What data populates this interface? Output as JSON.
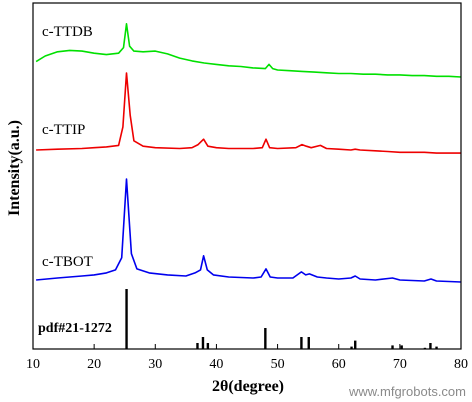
{
  "chart_data": {
    "type": "line",
    "xlabel": "2θ(degree)",
    "ylabel": "Intensity(a.u.)",
    "xlim": [
      10,
      80
    ],
    "xticks": [
      10,
      20,
      30,
      40,
      50,
      60,
      70,
      80
    ],
    "y_ticks_shown": false,
    "grid": false,
    "series": [
      {
        "name": "c-TTDB",
        "color": "#00e000",
        "x": [
          10.5,
          12,
          14,
          16,
          18,
          20,
          22,
          24,
          24.8,
          25.3,
          25.8,
          26.5,
          28,
          30,
          32,
          34,
          36,
          38,
          40,
          42,
          44,
          46,
          48,
          48.6,
          49.2,
          50,
          52,
          54,
          56,
          58,
          60,
          62,
          64,
          66,
          68,
          70,
          72,
          74,
          76,
          78,
          80
        ],
        "values": [
          0.12,
          0.2,
          0.26,
          0.28,
          0.27,
          0.24,
          0.22,
          0.24,
          0.32,
          0.66,
          0.34,
          0.27,
          0.26,
          0.27,
          0.23,
          0.17,
          0.13,
          0.1,
          0.08,
          0.06,
          0.05,
          0.03,
          0.02,
          0.08,
          0.02,
          0.0,
          -0.01,
          -0.02,
          -0.03,
          -0.04,
          -0.05,
          -0.05,
          -0.06,
          -0.06,
          -0.07,
          -0.07,
          -0.08,
          -0.08,
          -0.09,
          -0.09,
          -0.1
        ]
      },
      {
        "name": "c-TTIP",
        "color": "#ee0000",
        "x": [
          10.5,
          14,
          18,
          20,
          22,
          24,
          24.7,
          25.3,
          25.9,
          26.5,
          28,
          30,
          34,
          36,
          37,
          37.9,
          38.6,
          40,
          42,
          46,
          47.5,
          48.1,
          48.7,
          50,
          53,
          54,
          54.7,
          55.5,
          57,
          58,
          60,
          62,
          62.7,
          63.5,
          66,
          68,
          70,
          74,
          76,
          80
        ],
        "values": [
          0.0,
          0.01,
          0.02,
          0.03,
          0.04,
          0.06,
          0.3,
          1.0,
          0.45,
          0.12,
          0.05,
          0.03,
          0.02,
          0.03,
          0.07,
          0.14,
          0.05,
          0.03,
          0.02,
          0.02,
          0.03,
          0.14,
          0.03,
          0.02,
          0.03,
          0.07,
          0.05,
          0.03,
          0.06,
          0.02,
          0.01,
          0.0,
          0.01,
          0.0,
          -0.01,
          -0.02,
          -0.03,
          -0.03,
          -0.04,
          -0.04
        ]
      },
      {
        "name": "c-TBOT",
        "color": "#0000ee",
        "x": [
          10.5,
          14,
          18,
          20,
          22,
          23.5,
          24.5,
          25.3,
          26.1,
          27,
          29,
          32,
          35,
          36.5,
          37.4,
          37.9,
          38.5,
          39.5,
          42,
          46,
          47.3,
          48.1,
          48.8,
          50,
          52.5,
          53.9,
          54.6,
          55.2,
          56.5,
          58,
          60,
          62,
          62.7,
          63.5,
          66,
          68.8,
          70,
          74,
          75.1,
          76,
          80
        ],
        "values": [
          0.0,
          0.02,
          0.04,
          0.05,
          0.07,
          0.1,
          0.22,
          1.0,
          0.26,
          0.11,
          0.07,
          0.05,
          0.04,
          0.07,
          0.1,
          0.24,
          0.1,
          0.05,
          0.03,
          0.02,
          0.03,
          0.11,
          0.03,
          0.02,
          0.02,
          0.08,
          0.05,
          0.06,
          0.03,
          0.02,
          0.01,
          0.02,
          0.04,
          0.01,
          0.0,
          0.02,
          0.0,
          -0.01,
          0.01,
          -0.01,
          -0.02
        ]
      }
    ],
    "reference": {
      "name": "pdf#21-1272",
      "color": "#000000",
      "positions": [
        25.3,
        36.9,
        37.8,
        38.6,
        48.0,
        53.9,
        55.1,
        62.1,
        62.7,
        68.8,
        70.3,
        74.1,
        75.0,
        76.0
      ],
      "intensities": [
        100,
        10,
        20,
        10,
        35,
        20,
        20,
        4,
        14,
        6,
        6,
        2,
        10,
        4
      ]
    }
  },
  "watermark": "www.mfgrobots.com"
}
